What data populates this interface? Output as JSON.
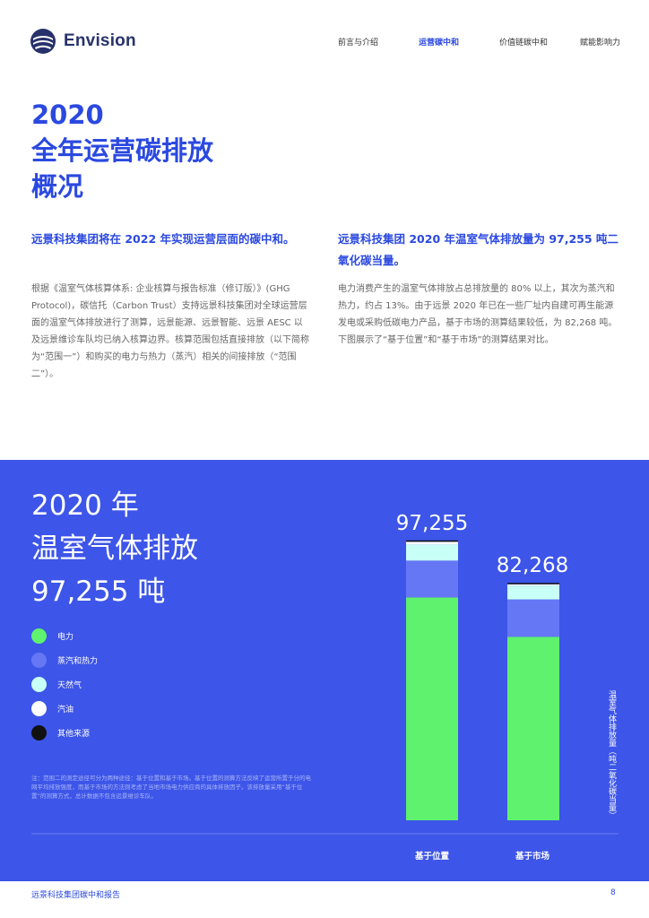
{
  "brand": {
    "name": "Envision"
  },
  "nav": [
    {
      "label": "前言与介绍",
      "active": false
    },
    {
      "label": "运营碳中和",
      "active": true
    },
    {
      "label": "价值链碳中和",
      "active": false
    },
    {
      "label": "赋能影响力",
      "active": false
    }
  ],
  "page": {
    "title": [
      "2020",
      "全年运营碳排放",
      "概况"
    ],
    "left": {
      "lead": "远景科技集团将在 2022 年实现运营层面的碳中和。",
      "body": "根据《温室气体核算体系: 企业核算与报告标准（修订版）》(GHG Protocol)，碳信托（Carbon Trust）支持远景科技集团对全球运营层面的温室气体排放进行了测算，远景能源、远景智能、远景 AESC 以及远景维诊车队均已纳入核算边界。核算范围包括直接排放（以下简称为“范围一”）和购买的电力与热力（蒸汽）相关的间接排放（“范围二”）。"
    },
    "right": {
      "lead": "远景科技集团 2020 年温室气体排放量为 97,255 吨二氧化碳当量。",
      "body": "电力消费产生的温室气体排放占总排放量的 80% 以上，其次为蒸汽和热力，约占 13%。由于远景 2020 年已在一些厂址内自建可再生能源发电或采购低碳电力产品，基于市场的测算结果较低，为 82,268 吨。下图展示了“基于位置”和“基于市场”的测算结果对比。"
    }
  },
  "panel": {
    "heading": [
      "2020 年",
      "温室气体排放",
      "97,255 吨"
    ],
    "legend": [
      {
        "label": "电力",
        "color": "#5ff26e"
      },
      {
        "label": "蒸汽和热力",
        "color": "#6677f6"
      },
      {
        "label": "天然气",
        "color": "#c8fff6"
      },
      {
        "label": "汽油",
        "color": "#ffffff"
      },
      {
        "label": "其他来源",
        "color": "#111111"
      }
    ],
    "note": "注：范围二的测定途径可分为两种途径：基于位置和基于市场。基于位置的测算方法反映了运营所置于分的电网平均排放强度，而基于市场的方法则考虑了当地市场电力供应商的具体排放因子。该排放量采用“基于位置”的测算方式，总计数据不包含远景维诊车队。",
    "axis_title": "温室气体排放量（吨二氧化碳当量）"
  },
  "chart_data": {
    "type": "bar",
    "stacked": true,
    "categories": [
      "基于位置",
      "基于市场"
    ],
    "totals": [
      97255,
      82268
    ],
    "total_labels": [
      "97,255",
      "82,268"
    ],
    "ylabel": "温室气体排放量（吨二氧化碳当量）",
    "ylim": [
      0,
      97255
    ],
    "series": [
      {
        "name": "电力",
        "color": "#5ff26e",
        "values": [
          77500,
          63800
        ]
      },
      {
        "name": "蒸汽和热力",
        "color": "#6677f6",
        "values": [
          12800,
          13000
        ]
      },
      {
        "name": "天然气",
        "color": "#c8fff6",
        "values": [
          5600,
          4800
        ]
      },
      {
        "name": "汽油",
        "color": "#ffffff",
        "values": [
          950,
          250
        ]
      },
      {
        "name": "其他来源",
        "color": "#111111",
        "values": [
          405,
          418
        ]
      }
    ]
  },
  "footer": {
    "left": "远景科技集团碳中和报告",
    "page": "8"
  }
}
